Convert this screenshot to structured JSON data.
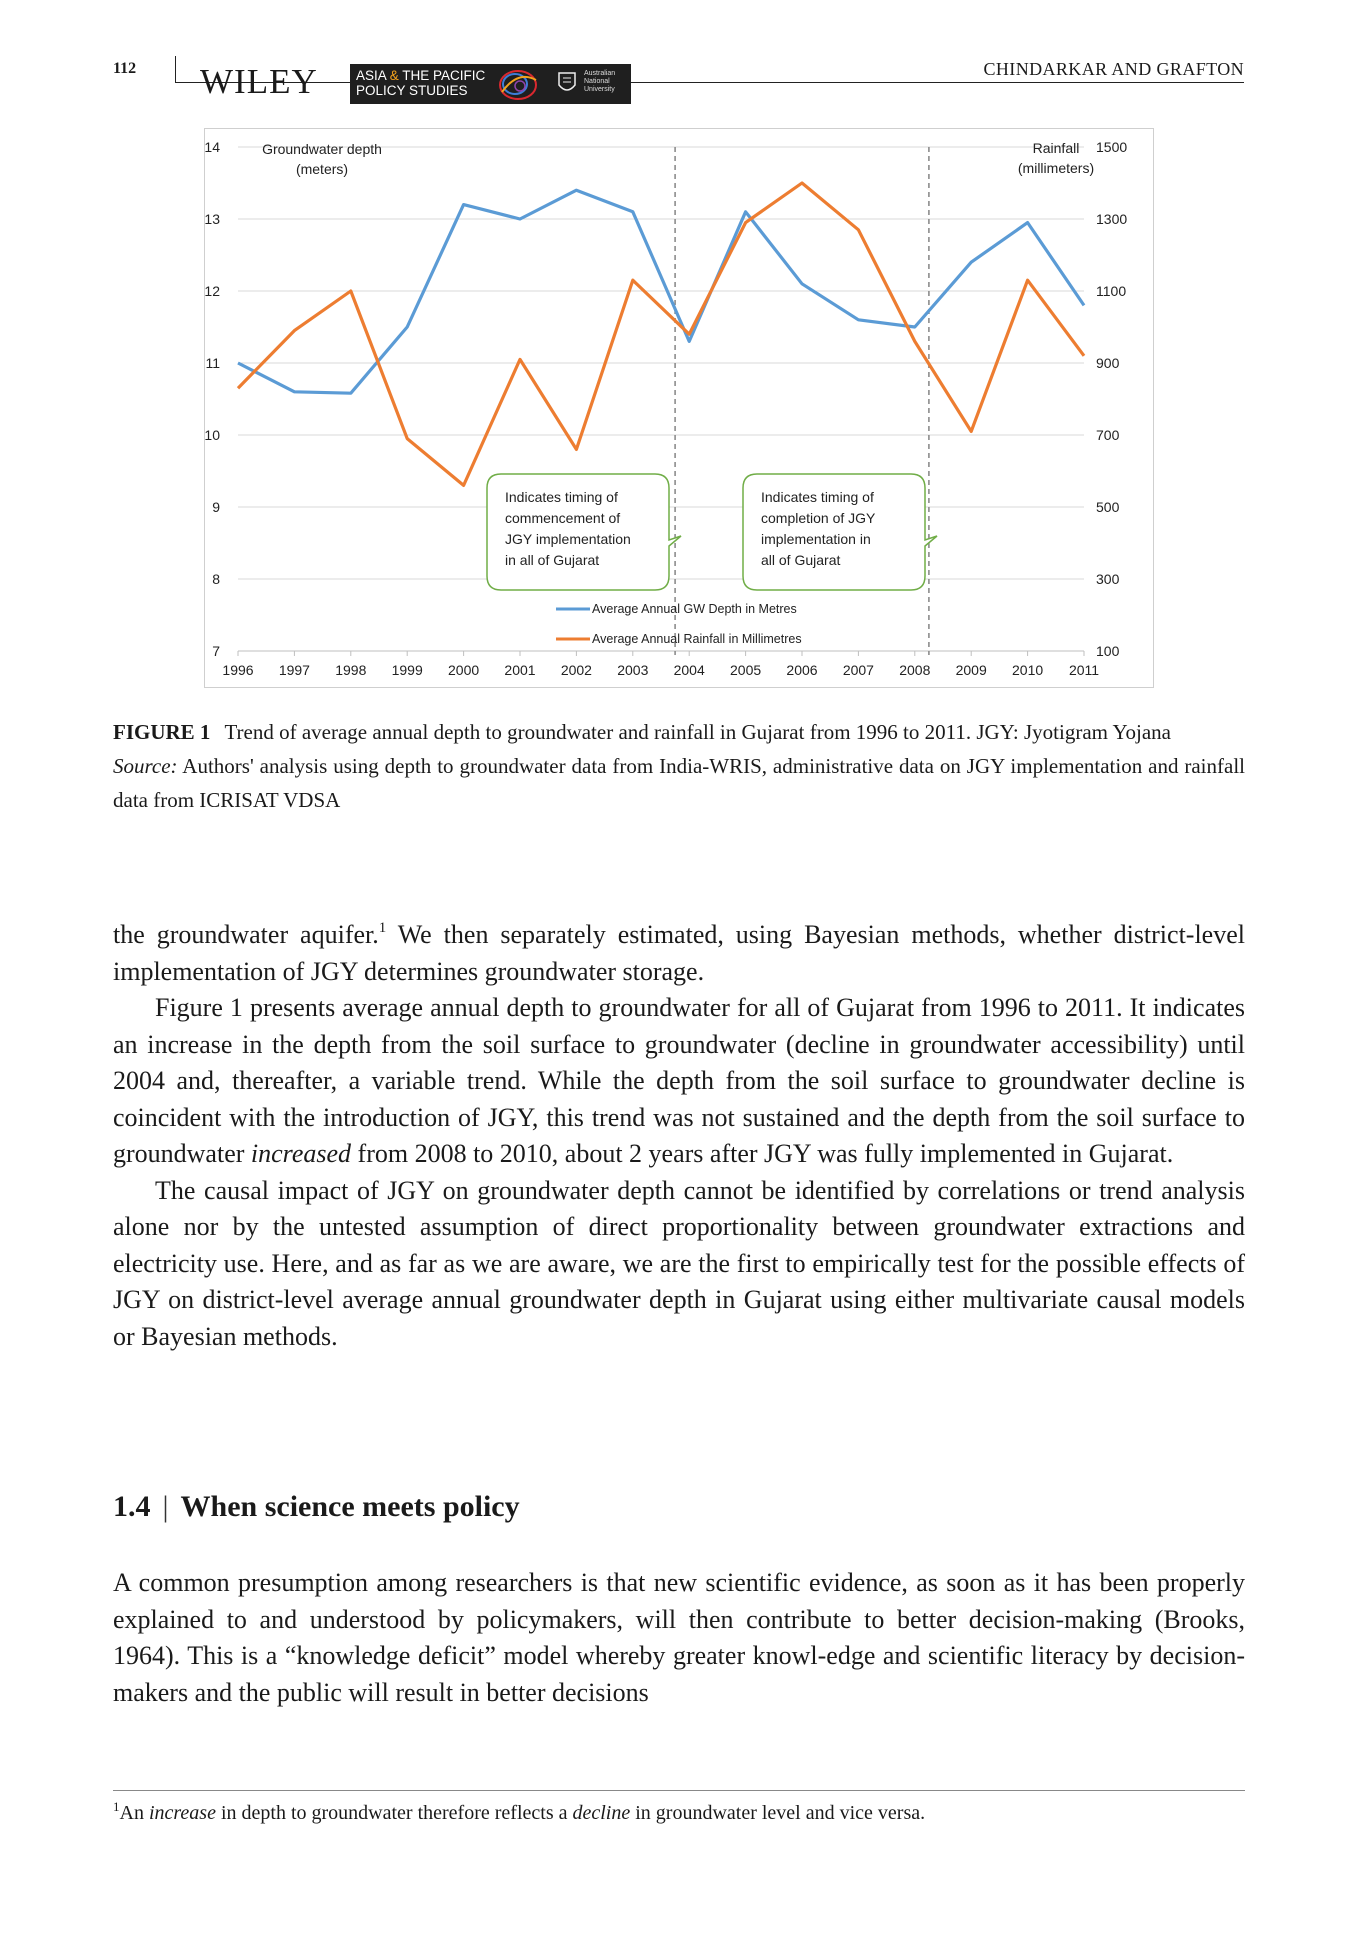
{
  "header": {
    "page_number": "112",
    "publisher": "WILEY",
    "journal_line1_a": "ASIA ",
    "journal_line1_amp": "&",
    "journal_line1_b": " THE PACIFIC",
    "journal_line2": "POLICY STUDIES",
    "university": [
      "Australian",
      "National",
      "University"
    ],
    "authors": "CHINDARKAR AND GRAFTON"
  },
  "chart_data": {
    "type": "line",
    "x": [
      1996,
      1997,
      1998,
      1999,
      2000,
      2001,
      2002,
      2003,
      2004,
      2005,
      2006,
      2007,
      2008,
      2009,
      2010,
      2011
    ],
    "series": [
      {
        "name": "Average Annual GW Depth in Metres",
        "axis": "left",
        "color": "#5b9bd5",
        "values": [
          11.0,
          10.6,
          10.58,
          11.5,
          13.2,
          13.0,
          13.4,
          13.1,
          11.3,
          13.1,
          12.1,
          11.6,
          11.5,
          12.4,
          12.95,
          11.8
        ]
      },
      {
        "name": "Average Annual Rainfall in Millimetres",
        "axis": "right",
        "color": "#ed7d31",
        "values": [
          830,
          990,
          1100,
          690,
          560,
          910,
          660,
          1130,
          980,
          1290,
          1400,
          1270,
          960,
          710,
          1130,
          920
        ]
      }
    ],
    "y_left": {
      "label_line1": "Groundwater depth",
      "label_line2": "(meters)",
      "ylim": [
        7,
        14
      ],
      "ticks": [
        "7",
        "8",
        "9",
        "10",
        "11",
        "12",
        "13",
        "14"
      ]
    },
    "y_right": {
      "label_line1": "Rainfall",
      "label_line2": "(millimeters)",
      "ylim": [
        100,
        1500
      ],
      "ticks": [
        "100",
        "300",
        "500",
        "700",
        "900",
        "1100",
        "1300",
        "1500"
      ]
    },
    "x_ticks": [
      "1996",
      "1997",
      "1998",
      "1999",
      "2000",
      "2001",
      "2002",
      "2003",
      "2004",
      "2005",
      "2006",
      "2007",
      "2008",
      "2009",
      "2010",
      "2011"
    ],
    "vertical_markers": [
      2003.75,
      2008.25
    ],
    "grid": true,
    "legend": "bottom-center",
    "annotations": [
      {
        "lines": [
          "Indicates timing of",
          "commencement of",
          "JGY implementation",
          "in all of Gujarat"
        ]
      },
      {
        "lines": [
          "Indicates timing of",
          "completion of JGY",
          "implementation in",
          "all of Gujarat"
        ]
      }
    ]
  },
  "caption": {
    "label": "FIGURE 1",
    "text": "Trend of average annual depth to groundwater and rainfall in Gujarat from 1996 to 2011. JGY: Jyotigram Yojana",
    "source_label": "Source:",
    "source_text": " Authors' analysis using depth to groundwater data from India-WRIS, administrative data on JGY implementation and rainfall data from ICRISAT VDSA"
  },
  "body": {
    "p1_a": "the groundwater aquifer.",
    "p1_sup": "1",
    "p1_b": " We then separately estimated, using Bayesian methods, whether district-level implementation of JGY determines groundwater storage.",
    "p2_a": "Figure 1 presents average annual depth to groundwater for all of Gujarat from 1996 to 2011. It indicates an increase in the depth from the soil surface to groundwater (decline in groundwater accessibility) until 2004 and, thereafter, a variable trend. While the depth from the soil surface to groundwater decline is coincident with the introduction of JGY, this trend was not sustained and the depth from the soil surface to groundwater ",
    "p2_em": "increased",
    "p2_b": " from 2008 to 2010, about 2 years after JGY was fully implemented in Gujarat.",
    "p3": "The causal impact of JGY on groundwater depth cannot be identified by correlations or trend analysis alone nor by the untested assumption of direct proportionality between groundwater extractions and electricity use. Here, and as far as we are aware, we are the first to empirically test for the possible effects of JGY on district-level average annual groundwater depth in Gujarat using either multivariate causal models or Bayesian methods."
  },
  "section": {
    "number": "1.4",
    "separator": "|",
    "title": "When science meets policy",
    "text": "A common presumption among researchers is that new scientific evidence, as soon as it has been properly explained to and understood by policymakers, will then contribute to better decision-making (Brooks, 1964). This is a “knowledge deficit” model whereby greater knowl-edge and scientific literacy by decision-makers and the public will result in better decisions"
  },
  "footnote": {
    "sup": "1",
    "a": "An ",
    "em1": "increase",
    "b": " in depth to groundwater therefore reflects a ",
    "em2": "decline",
    "c": " in groundwater level and vice versa."
  }
}
